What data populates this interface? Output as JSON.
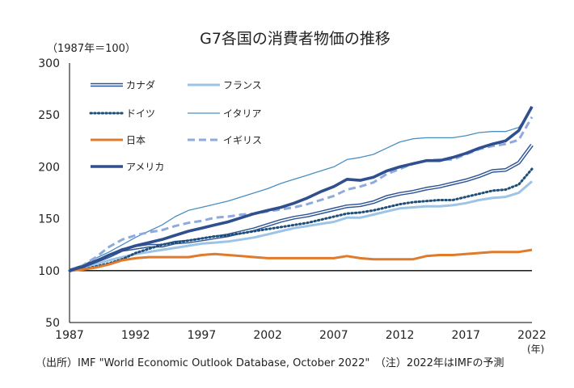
{
  "chart_data": {
    "type": "line",
    "title": "G7各国の消費者物価の推移",
    "base_note": "（1987年＝100）",
    "x_unit": "(年)",
    "xlim": [
      1987,
      2022
    ],
    "ylim": [
      50,
      300
    ],
    "x_ticks": [
      1987,
      1992,
      1997,
      2002,
      2007,
      2012,
      2017,
      2022
    ],
    "y_ticks": [
      50,
      100,
      150,
      200,
      250,
      300
    ],
    "reference_line": 100,
    "source": "（出所）IMF \"World Economic Outlook Database, October 2022\"　（注）2022年はIMFの予測",
    "x": [
      1987,
      1988,
      1989,
      1990,
      1991,
      1992,
      1993,
      1994,
      1995,
      1996,
      1997,
      1998,
      1999,
      2000,
      2001,
      2002,
      2003,
      2004,
      2005,
      2006,
      2007,
      2008,
      2009,
      2010,
      2011,
      2012,
      2013,
      2014,
      2015,
      2016,
      2017,
      2018,
      2019,
      2020,
      2021,
      2022
    ],
    "series": [
      {
        "name": "カナダ",
        "color": "#2f5597",
        "style": "double",
        "values": [
          100,
          104,
          109,
          114,
          120,
          122,
          124,
          124,
          127,
          128,
          130,
          132,
          134,
          137,
          140,
          144,
          148,
          151,
          153,
          156,
          159,
          162,
          163,
          166,
          171,
          174,
          176,
          179,
          181,
          184,
          187,
          191,
          196,
          197,
          204,
          221
        ]
      },
      {
        "name": "フランス",
        "color": "#9dc3e6",
        "style": "solid-light",
        "values": [
          100,
          103,
          106,
          110,
          113,
          116,
          118,
          120,
          122,
          124,
          126,
          127,
          128,
          130,
          132,
          135,
          138,
          141,
          143,
          145,
          147,
          151,
          151,
          154,
          157,
          160,
          161,
          162,
          162,
          163,
          165,
          168,
          170,
          171,
          175,
          186
        ]
      },
      {
        "name": "ドイツ",
        "color": "#1f4e79",
        "style": "dotted",
        "values": [
          100,
          101,
          104,
          107,
          111,
          117,
          121,
          125,
          127,
          129,
          131,
          133,
          134,
          136,
          138,
          140,
          142,
          144,
          146,
          149,
          152,
          155,
          156,
          158,
          161,
          164,
          166,
          167,
          168,
          168,
          171,
          174,
          177,
          178,
          183,
          198
        ]
      },
      {
        "name": "イタリア",
        "color": "#4a8fc2",
        "style": "thin",
        "values": [
          100,
          105,
          112,
          118,
          125,
          132,
          138,
          144,
          152,
          158,
          161,
          164,
          167,
          171,
          175,
          179,
          184,
          188,
          192,
          196,
          200,
          207,
          209,
          212,
          218,
          224,
          227,
          228,
          228,
          228,
          230,
          233,
          234,
          234,
          238,
          256
        ]
      },
      {
        "name": "日本",
        "color": "#e07b2b",
        "style": "solid-orange",
        "values": [
          100,
          101,
          103,
          106,
          110,
          112,
          113,
          113,
          113,
          113,
          115,
          116,
          115,
          114,
          113,
          112,
          112,
          112,
          112,
          112,
          112,
          114,
          112,
          111,
          111,
          111,
          111,
          114,
          115,
          115,
          116,
          117,
          118,
          118,
          118,
          120
        ]
      },
      {
        "name": "イギリス",
        "color": "#8faadc",
        "style": "dashed",
        "values": [
          100,
          105,
          113,
          123,
          130,
          134,
          137,
          139,
          143,
          146,
          148,
          151,
          152,
          154,
          155,
          157,
          159,
          161,
          164,
          168,
          172,
          178,
          181,
          185,
          193,
          198,
          203,
          206,
          207,
          207,
          212,
          217,
          220,
          222,
          226,
          248
        ]
      },
      {
        "name": "アメリカ",
        "color": "#2f4f8f",
        "style": "thick",
        "values": [
          100,
          104,
          109,
          115,
          120,
          124,
          127,
          130,
          134,
          138,
          141,
          144,
          147,
          151,
          155,
          158,
          161,
          165,
          170,
          176,
          181,
          188,
          187,
          190,
          196,
          200,
          203,
          206,
          206,
          209,
          213,
          218,
          222,
          225,
          235,
          258
        ]
      }
    ]
  }
}
